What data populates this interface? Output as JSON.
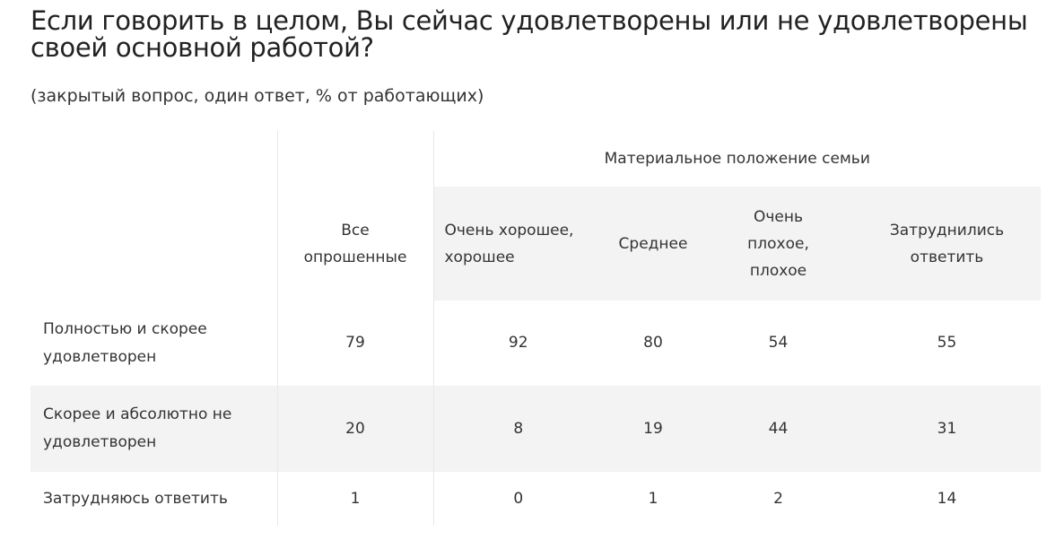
{
  "title": "Если говорить в целом, Вы сейчас удовлетворены или не удовлетворены своей основной работой?",
  "subtitle": "(закрытый вопрос, один ответ, % от работающих)",
  "table": {
    "group_header": "Материальное положение семьи",
    "columns": [
      "Все опрошенные",
      "Очень хорошее, хорошее",
      "Среднее",
      "Очень плохое, плохое",
      "Затруднились ответить"
    ],
    "rows": [
      {
        "label": "Полностью и скорее удовлетворен",
        "values": [
          "79",
          "92",
          "80",
          "54",
          "55"
        ]
      },
      {
        "label": "Скорее и абсолютно не удовлетворен",
        "values": [
          "20",
          "8",
          "19",
          "44",
          "31"
        ]
      },
      {
        "label": "Затрудняюсь ответить",
        "values": [
          "1",
          "0",
          "1",
          "2",
          "14"
        ]
      }
    ]
  },
  "colors": {
    "shade": "#f3f3f3",
    "text": "#333333",
    "title": "#222222",
    "divider": "#e8e8e8"
  }
}
